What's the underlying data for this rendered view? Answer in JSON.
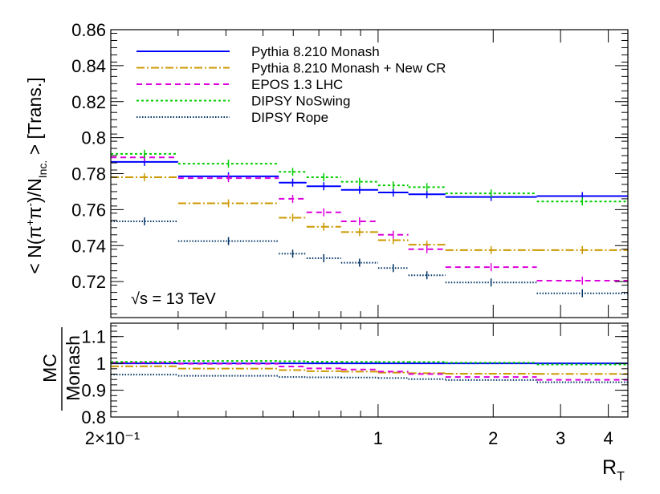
{
  "chart_data": {
    "type": "line",
    "style": "histogram-step",
    "x_scale": "log",
    "xlim": [
      0.2,
      4.5
    ],
    "xlabel": "R_T",
    "x_ticks": [
      {
        "v": 0.2,
        "label": "2×10⁻¹"
      },
      {
        "v": 1,
        "label": "1"
      },
      {
        "v": 2,
        "label": "2"
      },
      {
        "v": 3,
        "label": "3"
      },
      {
        "v": 4,
        "label": "4"
      }
    ],
    "bin_edges": [
      0.2,
      0.3,
      0.55,
      0.65,
      0.8,
      1.0,
      1.2,
      1.5,
      2.6,
      4.5
    ],
    "series": [
      {
        "name": "Pythia 8.210 Monash",
        "color": "#0000ff",
        "dash": "",
        "values": [
          0.7865,
          0.7785,
          0.775,
          0.773,
          0.771,
          0.7695,
          0.7685,
          0.767,
          0.7675
        ]
      },
      {
        "name": "Pythia 8.210 Monash + New CR",
        "color": "#cc9900",
        "dash": "10,3,2,3",
        "values": [
          0.778,
          0.7635,
          0.7555,
          0.7505,
          0.7475,
          0.743,
          0.7405,
          0.7375,
          0.7375
        ]
      },
      {
        "name": "EPOS 1.3 LHC",
        "color": "#dd00dd",
        "dash": "7,5",
        "values": [
          0.789,
          0.7775,
          0.766,
          0.7585,
          0.7535,
          0.746,
          0.738,
          0.728,
          0.7205
        ]
      },
      {
        "name": "DIPSY NoSwing",
        "color": "#00cc00",
        "dash": "3,3",
        "values": [
          0.791,
          0.7855,
          0.781,
          0.778,
          0.7755,
          0.7735,
          0.7725,
          0.769,
          0.7645
        ]
      },
      {
        "name": "DIPSY Rope",
        "color": "#003366",
        "dash": "1.5,2",
        "values": [
          0.7535,
          0.7425,
          0.7355,
          0.733,
          0.7305,
          0.7275,
          0.7235,
          0.7195,
          0.7135
        ]
      }
    ],
    "top_panel": {
      "ylabel": "< N(π⁺π⁻)/N_Inc. > [Trans.]",
      "ylim": [
        0.7,
        0.86
      ],
      "y_ticks": [
        0.72,
        0.74,
        0.76,
        0.78,
        0.8,
        0.82,
        0.84,
        0.86
      ],
      "y_tick_labels": [
        "0.72",
        "0.74",
        "0.76",
        "0.78",
        "0.8",
        "0.82",
        "0.84",
        "0.86"
      ],
      "annotation": "√s = 13 TeV"
    },
    "ratio_panel": {
      "ylabel_num": "MC",
      "ylabel_den": "Monash",
      "ylim": [
        0.8,
        1.15
      ],
      "y_ticks": [
        0.8,
        0.9,
        1.0,
        1.1
      ],
      "y_tick_labels": [
        "0.8",
        "0.9",
        "1",
        "1.1"
      ]
    },
    "legend": {
      "position": "top-left"
    }
  }
}
